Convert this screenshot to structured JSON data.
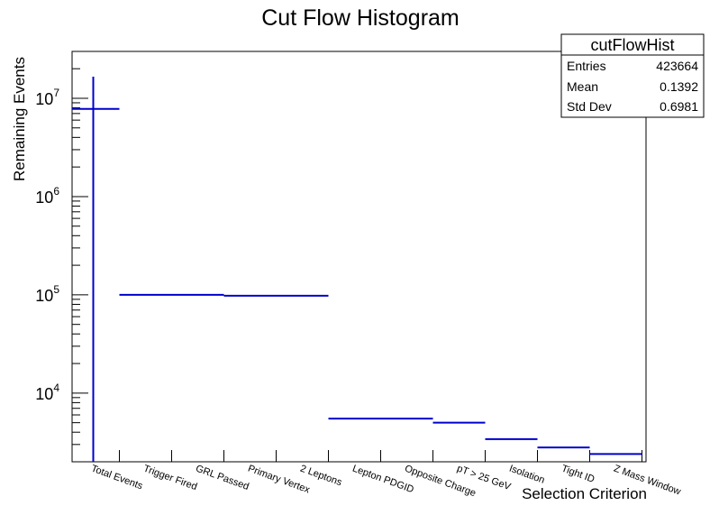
{
  "chart_data": {
    "type": "bar",
    "title": "Cut Flow Histogram",
    "xlabel": "Selection Criterion",
    "ylabel": "Remaining Events",
    "yscale": "log",
    "ylim": [
      2000,
      30000000
    ],
    "y_ticks": [
      {
        "base": "10",
        "exp": "4",
        "value": 10000
      },
      {
        "base": "10",
        "exp": "5",
        "value": 100000
      },
      {
        "base": "10",
        "exp": "6",
        "value": 1000000
      },
      {
        "base": "10",
        "exp": "7",
        "value": 10000000
      }
    ],
    "categories": [
      "Total Events",
      "Trigger Fired",
      "GRL Passed",
      "Primary Vertex",
      "2 Leptons",
      "Lepton PDGID",
      "Opposite Charge",
      "pT > 25 GeV",
      "Isolation",
      "Tight ID",
      "Z Mass Window"
    ],
    "values": [
      7800000,
      100000,
      100000,
      98000,
      98000,
      5500,
      5500,
      5000,
      3400,
      2800,
      2400
    ],
    "series_color": "#0000cc",
    "grid": false,
    "legend": "top-right",
    "stats_box": {
      "title": "cutFlowHist",
      "rows": [
        {
          "label": "Entries",
          "value": "423664"
        },
        {
          "label": "Mean",
          "value": "0.1392"
        },
        {
          "label": "Std Dev",
          "value": "0.6981"
        }
      ]
    }
  }
}
